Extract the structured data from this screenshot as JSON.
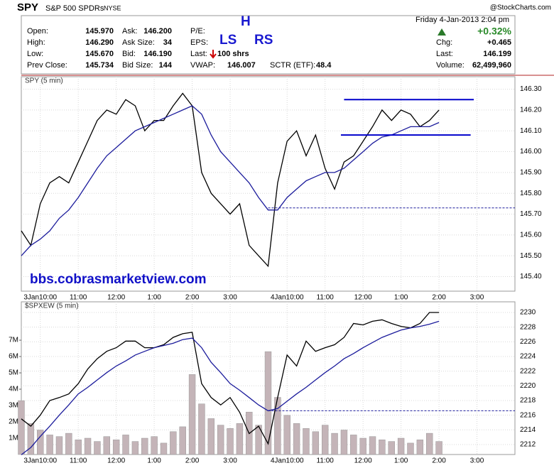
{
  "header": {
    "symbol": "SPY",
    "name": "S&P 500 SPDRs",
    "exchange": "NYSE",
    "source": "@StockCharts.com",
    "date": "Friday  4-Jan-2013 2:04 pm",
    "change_pct": "+0.32%",
    "quote": [
      [
        "Open:",
        "145.970"
      ],
      [
        "High:",
        "146.290"
      ],
      [
        "Low:",
        "145.670"
      ],
      [
        "Prev Close:",
        "145.734"
      ]
    ],
    "book": [
      [
        "Ask:",
        "146.200"
      ],
      [
        "Ask Size:",
        "34"
      ],
      [
        "Bid:",
        "146.190"
      ],
      [
        "Bid Size:",
        "144"
      ]
    ],
    "pe_label": "P/E:",
    "eps_label": "EPS:",
    "last_label": "Last:",
    "last_size": "100 shrs",
    "vwap": [
      "VWAP:",
      "146.007"
    ],
    "sctr": [
      "SCTR (ETF):",
      "48.4"
    ],
    "summary": [
      [
        "Chg:",
        "+0.465"
      ],
      [
        "Last:",
        "146.199"
      ],
      [
        "Volume:",
        "62,499,960"
      ]
    ],
    "annotations": [
      "H",
      "LS",
      "RS"
    ]
  },
  "chart_data": [
    {
      "type": "line",
      "title": "SPY (5 min)",
      "annotation": "bbs.cobrasmarketview.com",
      "x": [
        0,
        3,
        6,
        9,
        12,
        15,
        18,
        21,
        24,
        27,
        30,
        33,
        36,
        39,
        42,
        45,
        48,
        51,
        54,
        57,
        60,
        63,
        66,
        69,
        72,
        75,
        78,
        81,
        84,
        87,
        90,
        93,
        96,
        99,
        102,
        105,
        108,
        111,
        114,
        117,
        120,
        123,
        126,
        129,
        132
      ],
      "xlim": [
        0,
        156
      ],
      "xticks": [
        {
          "value": 6,
          "label": "3Jan10:00"
        },
        {
          "value": 18,
          "label": "11:00"
        },
        {
          "value": 30,
          "label": "12:00"
        },
        {
          "value": 42,
          "label": "1:00"
        },
        {
          "value": 54,
          "label": "2:00"
        },
        {
          "value": 66,
          "label": "3:00"
        },
        {
          "value": 84,
          "label": "4Jan10:00"
        },
        {
          "value": 96,
          "label": "11:00"
        },
        {
          "value": 108,
          "label": "12:00"
        },
        {
          "value": 120,
          "label": "1:00"
        },
        {
          "value": 132,
          "label": "2:00"
        },
        {
          "value": 144,
          "label": "3:00"
        }
      ],
      "ylim": [
        145.33,
        146.36
      ],
      "yticks": [
        {
          "value": 145.4,
          "label": "145.40"
        },
        {
          "value": 145.5,
          "label": "145.50"
        },
        {
          "value": 145.6,
          "label": "145.60"
        },
        {
          "value": 145.7,
          "label": "145.70"
        },
        {
          "value": 145.8,
          "label": "145.80"
        },
        {
          "value": 145.9,
          "label": "145.90"
        },
        {
          "value": 146.0,
          "label": "146.00"
        },
        {
          "value": 146.1,
          "label": "146.10"
        },
        {
          "value": 146.2,
          "label": "146.20"
        },
        {
          "value": 146.3,
          "label": "146.30"
        }
      ],
      "grid": true,
      "series": [
        {
          "color": "#000000",
          "values": [
            145.62,
            145.55,
            145.75,
            145.85,
            145.88,
            145.85,
            145.95,
            146.05,
            146.15,
            146.2,
            146.18,
            146.25,
            146.22,
            146.1,
            146.15,
            146.15,
            146.22,
            146.28,
            146.22,
            145.9,
            145.8,
            145.75,
            145.7,
            145.75,
            145.55,
            145.5,
            145.45,
            145.85,
            146.05,
            146.1,
            145.98,
            146.08,
            145.92,
            145.82,
            145.95,
            145.98,
            146.05,
            146.12,
            146.2,
            146.15,
            146.2,
            146.18,
            146.12,
            146.15,
            146.2
          ]
        },
        {
          "color": "#1c1c9c",
          "values": [
            145.5,
            145.55,
            145.58,
            145.62,
            145.68,
            145.72,
            145.78,
            145.85,
            145.92,
            145.98,
            146.02,
            146.06,
            146.1,
            146.12,
            146.14,
            146.16,
            146.18,
            146.2,
            146.22,
            146.18,
            146.08,
            146.0,
            145.95,
            145.9,
            145.85,
            145.78,
            145.72,
            145.72,
            145.78,
            145.82,
            145.86,
            145.88,
            145.9,
            145.9,
            145.92,
            145.96,
            146.0,
            146.04,
            146.07,
            146.08,
            146.1,
            146.12,
            146.12,
            146.12,
            146.14
          ]
        }
      ],
      "hlines": [
        {
          "y": 146.25,
          "x": [
            102,
            143
          ],
          "style": "solid",
          "color": "#0000cc"
        },
        {
          "y": 146.08,
          "x": [
            101,
            142
          ],
          "style": "solid",
          "color": "#0000cc"
        },
        {
          "y": 145.73,
          "x": [
            78,
            156
          ],
          "style": "dashed",
          "color": "#1c1c9c"
        }
      ]
    },
    {
      "type": "line",
      "title": "$SPXEW (5 min)",
      "x": [
        0,
        3,
        6,
        9,
        12,
        15,
        18,
        21,
        24,
        27,
        30,
        33,
        36,
        39,
        42,
        45,
        48,
        51,
        54,
        57,
        60,
        63,
        66,
        69,
        72,
        75,
        78,
        81,
        84,
        87,
        90,
        93,
        96,
        99,
        102,
        105,
        108,
        111,
        114,
        117,
        120,
        123,
        126,
        129,
        132
      ],
      "xlim": [
        0,
        156
      ],
      "xticks": [
        {
          "value": 6,
          "label": "3Jan10:00"
        },
        {
          "value": 18,
          "label": "11:00"
        },
        {
          "value": 30,
          "label": "12:00"
        },
        {
          "value": 42,
          "label": "1:00"
        },
        {
          "value": 54,
          "label": "2:00"
        },
        {
          "value": 66,
          "label": "3:00"
        },
        {
          "value": 84,
          "label": "4Jan10:00"
        },
        {
          "value": 96,
          "label": "11:00"
        },
        {
          "value": 108,
          "label": "12:00"
        },
        {
          "value": 120,
          "label": "1:00"
        },
        {
          "value": 132,
          "label": "2:00"
        },
        {
          "value": 144,
          "label": "3:00"
        }
      ],
      "ylim": [
        0,
        9350000
      ],
      "yticks": [
        {
          "value": 1000000,
          "label": "1M"
        },
        {
          "value": 2000000,
          "label": "2M"
        },
        {
          "value": 3000000,
          "label": "3M"
        },
        {
          "value": 4000000,
          "label": "4M"
        },
        {
          "value": 5000000,
          "label": "5M"
        },
        {
          "value": 6000000,
          "label": "6M"
        },
        {
          "value": 7000000,
          "label": "7M"
        }
      ],
      "y2lim": [
        2210.64,
        2231.45
      ],
      "y2ticks": [
        2212,
        2214,
        2216,
        2218,
        2220,
        2222,
        2224,
        2226,
        2228,
        2230
      ],
      "grid": true,
      "series": [
        {
          "type": "bar",
          "color": "#c4b4b8",
          "values": [
            3300000,
            1900000,
            1500000,
            1200000,
            1100000,
            1300000,
            900000,
            1000000,
            800000,
            1100000,
            900000,
            1200000,
            800000,
            1000000,
            1100000,
            700000,
            1400000,
            1700000,
            4900000,
            3100000,
            2200000,
            1800000,
            1600000,
            1900000,
            2600000,
            1800000,
            6300000,
            3500000,
            2400000,
            1900000,
            1600000,
            1400000,
            1800000,
            1300000,
            1500000,
            1200000,
            1000000,
            1100000,
            900000,
            800000,
            1000000,
            700000,
            900000,
            1300000,
            800000
          ]
        },
        {
          "axis": "y2",
          "color": "#000000",
          "values": [
            2215.5,
            2214.5,
            2216,
            2218,
            2218.4,
            2218.9,
            2220.3,
            2222.3,
            2223.7,
            2224.7,
            2225.2,
            2226.1,
            2226.1,
            2225.2,
            2225.2,
            2225.6,
            2226.6,
            2227.1,
            2227.3,
            2220.3,
            2218.4,
            2217.4,
            2218.4,
            2216.4,
            2213.5,
            2214.5,
            2212.1,
            2218.4,
            2224.2,
            2222.7,
            2226.1,
            2224.7,
            2225.2,
            2225.6,
            2226.6,
            2228.5,
            2228.3,
            2228.8,
            2229,
            2228.5,
            2228.1,
            2227.9,
            2228.5,
            2230,
            2230
          ]
        },
        {
          "axis": "y2",
          "color": "#1c1c9c",
          "values": [
            2210.6,
            2211.6,
            2213.1,
            2214.5,
            2216,
            2217.4,
            2218.9,
            2219.8,
            2220.8,
            2221.8,
            2222.7,
            2223.4,
            2224.2,
            2224.7,
            2225.2,
            2225.5,
            2225.8,
            2226.3,
            2226.5,
            2225.2,
            2223.2,
            2221.8,
            2220.3,
            2219.4,
            2218.4,
            2217.4,
            2216.6,
            2216.9,
            2217.9,
            2218.9,
            2219.8,
            2220.8,
            2221.8,
            2222.7,
            2223.7,
            2224.4,
            2225.2,
            2225.9,
            2226.6,
            2227.1,
            2227.6,
            2227.9,
            2228.1,
            2228.4,
            2228.8
          ]
        }
      ],
      "hlines": [
        {
          "y": 2216.6,
          "x": [
            78,
            156
          ],
          "style": "dashed",
          "color": "#1c1c9c"
        }
      ]
    }
  ]
}
